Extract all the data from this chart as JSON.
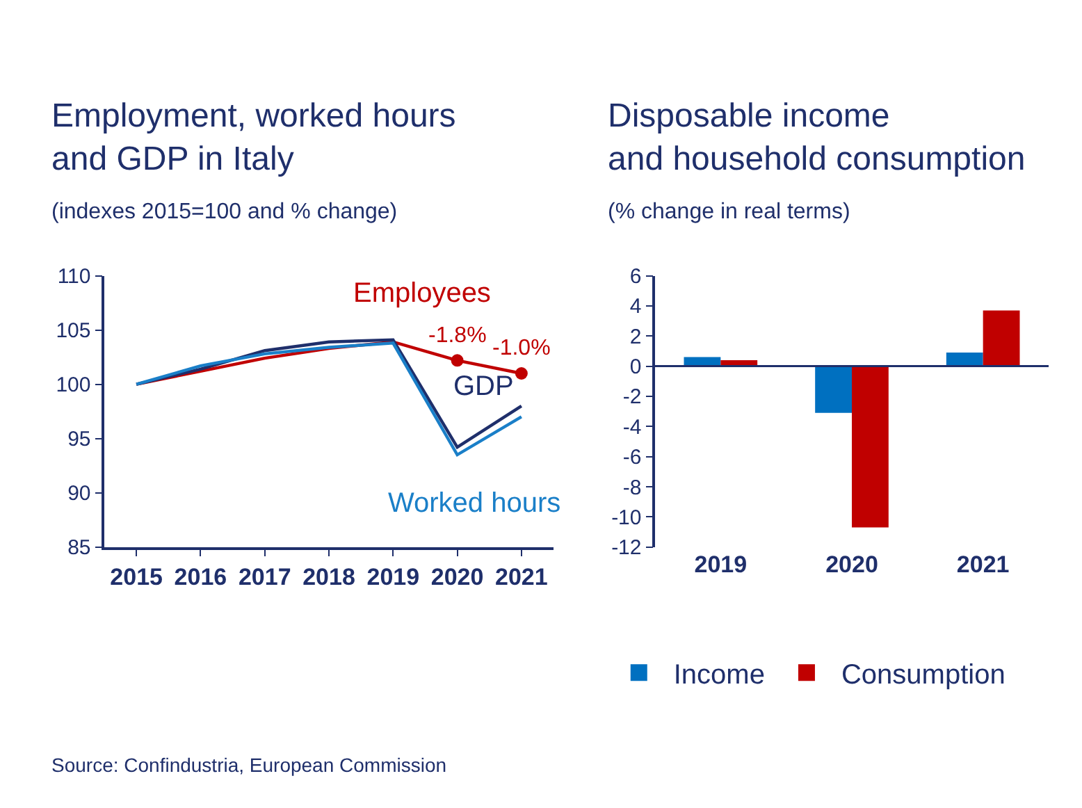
{
  "chart_data": [
    {
      "type": "line",
      "title": "Employment, worked hours\nand GDP in Italy",
      "subtitle": "(indexes 2015=100 and % change)",
      "categories": [
        "2015",
        "2016",
        "2017",
        "2018",
        "2019",
        "2020",
        "2021"
      ],
      "series": [
        {
          "name": "Employees",
          "color": "#c00000",
          "values": [
            100,
            101.2,
            102.4,
            103.3,
            103.9,
            102.2,
            101.0
          ]
        },
        {
          "name": "GDP",
          "color": "#1f2f6b",
          "values": [
            100,
            101.4,
            103.1,
            103.9,
            104.1,
            94.2,
            98.0
          ]
        },
        {
          "name": "Worked hours",
          "color": "#1a7fc8",
          "values": [
            100,
            101.7,
            102.8,
            103.4,
            103.8,
            93.5,
            97.0
          ]
        },
        {
          "type": "scatter",
          "color": "#c00000",
          "values": [
            null,
            null,
            null,
            null,
            null,
            102.2,
            101.0
          ]
        }
      ],
      "ylim": [
        85,
        110
      ],
      "yticks": [
        85,
        90,
        95,
        100,
        105,
        110
      ],
      "annotations": [
        {
          "text": "-1.8%",
          "x": "2020",
          "y": 102.2
        },
        {
          "text": "-1.0%",
          "x": "2021",
          "y": 101.0
        },
        "Source: Confindustria, European Commission"
      ]
    },
    {
      "type": "bar",
      "title": "Disposable income\nand household consumption",
      "subtitle": "(% change in real terms)",
      "categories": [
        "2019",
        "2020",
        "2021"
      ],
      "series": [
        {
          "name": "Income",
          "color": "#0070c0",
          "values": [
            0.6,
            -3.1,
            0.9
          ]
        },
        {
          "name": "Consumption",
          "color": "#c00000",
          "values": [
            0.4,
            -10.7,
            3.7
          ]
        }
      ],
      "ylim": [
        -12,
        6
      ],
      "yticks": [
        -12,
        -10,
        -8,
        -6,
        -4,
        -2,
        0,
        2,
        4,
        6
      ],
      "legend": "bottom",
      "ref_lines": [
        {
          "axis": "y",
          "value": 0,
          "color": "#1f2f6b"
        }
      ]
    }
  ]
}
